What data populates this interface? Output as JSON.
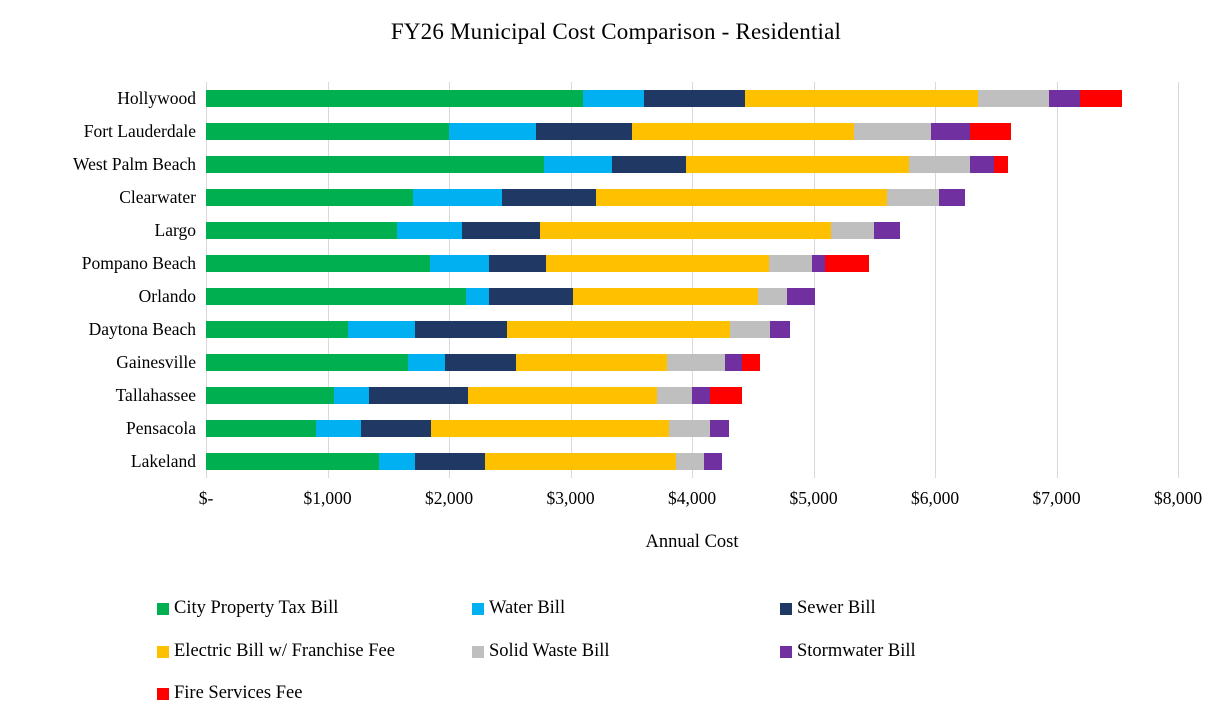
{
  "title": "FY26 Municipal Cost Comparison - Residential",
  "chart_data": {
    "type": "bar",
    "orientation": "horizontal",
    "stacked": true,
    "title": "FY26 Municipal Cost Comparison - Residential",
    "xlabel": "Annual Cost",
    "ylabel": "",
    "xlim": [
      0,
      8000
    ],
    "x_tick_labels": [
      "$-",
      "$1,000",
      "$2,000",
      "$3,000",
      "$4,000",
      "$5,000",
      "$6,000",
      "$7,000",
      "$8,000"
    ],
    "grid": "vertical",
    "grid_color": "#d9d9d9",
    "legend_position": "bottom",
    "categories": [
      "Hollywood",
      "Fort Lauderdale",
      "West Palm Beach",
      "Clearwater",
      "Largo",
      "Pompano Beach",
      "Orlando",
      "Daytona Beach",
      "Gainesville",
      "Tallahassee",
      "Pensacola",
      "Lakeland"
    ],
    "series": [
      {
        "name": "City Property Tax Bill",
        "color": "#00b050",
        "values": [
          3105,
          2000,
          2780,
          1705,
          1575,
          1845,
          2140,
          1165,
          1660,
          1055,
          905,
          1420
        ]
      },
      {
        "name": "Water Bill",
        "color": "#00b0f0",
        "values": [
          500,
          715,
          565,
          730,
          530,
          485,
          190,
          555,
          305,
          290,
          370,
          300
        ]
      },
      {
        "name": "Sewer Bill",
        "color": "#1f3864",
        "values": [
          830,
          790,
          605,
          775,
          645,
          470,
          690,
          760,
          590,
          810,
          575,
          575
        ]
      },
      {
        "name": "Electric Bill w/ Franchise Fee",
        "color": "#ffc000",
        "values": [
          1915,
          1830,
          1840,
          2395,
          2395,
          1830,
          1525,
          1830,
          1240,
          1555,
          1960,
          1570
        ]
      },
      {
        "name": "Solid Waste Bill",
        "color": "#bfbfbf",
        "values": [
          585,
          635,
          495,
          430,
          355,
          355,
          235,
          330,
          475,
          290,
          340,
          235
        ]
      },
      {
        "name": "Stormwater Bill",
        "color": "#7030a0",
        "values": [
          260,
          320,
          200,
          210,
          215,
          110,
          230,
          165,
          145,
          150,
          155,
          150
        ]
      },
      {
        "name": "Fire Services Fee",
        "color": "#ff0000",
        "values": [
          345,
          335,
          115,
          0,
          0,
          365,
          0,
          0,
          145,
          265,
          0,
          0
        ]
      }
    ],
    "totals": [
      7540,
      6625,
      6600,
      6245,
      5715,
      5460,
      5010,
      4805,
      4560,
      4415,
      4305,
      4250
    ]
  }
}
